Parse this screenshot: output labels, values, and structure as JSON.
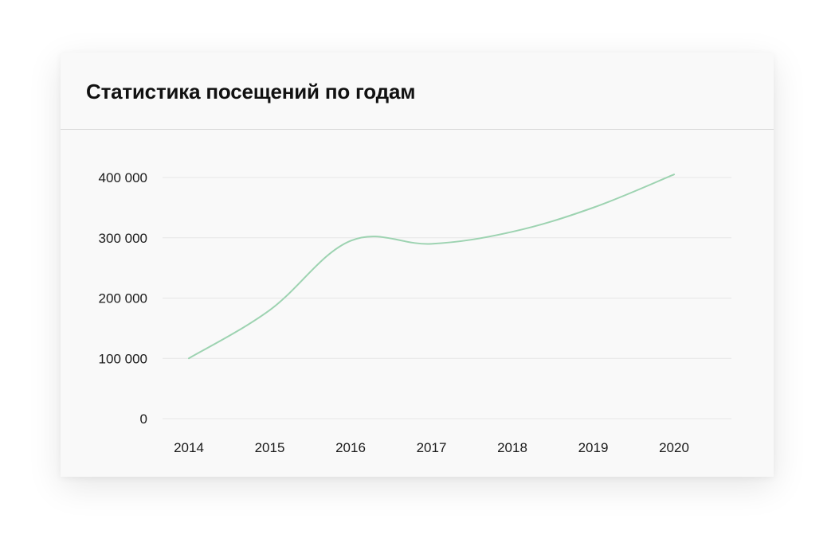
{
  "card": {
    "title": "Статистика посещений по годам"
  },
  "chart_data": {
    "type": "line",
    "title": "Статистика посещений по годам",
    "xlabel": "",
    "ylabel": "",
    "x": [
      "2014",
      "2015",
      "2016",
      "2017",
      "2018",
      "2019",
      "2020"
    ],
    "series": [
      {
        "values": [
          100000,
          180000,
          295000,
          290000,
          310000,
          350000,
          405000
        ]
      }
    ],
    "yticks": [
      0,
      100000,
      200000,
      300000,
      400000
    ],
    "ytick_labels": [
      "0",
      "100 000",
      "200 000",
      "300 000",
      "400 000"
    ],
    "ylim": [
      0,
      400000
    ],
    "grid": "horizontal",
    "legend": "none",
    "line_color": "#9dd3b1",
    "grid_color": "#e6e6e6"
  }
}
